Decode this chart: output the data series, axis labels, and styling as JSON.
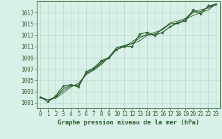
{
  "title": "Graphe pression niveau de la mer (hPa)",
  "bg_color": "#d8f0e8",
  "grid_color": "#b8d8c8",
  "line_color": "#2a5e2a",
  "marker_color": "#2a5e2a",
  "xlim": [
    -0.5,
    23.5
  ],
  "ylim": [
    1000.0,
    1019.0
  ],
  "xticks": [
    0,
    1,
    2,
    3,
    4,
    5,
    6,
    7,
    8,
    9,
    10,
    11,
    12,
    13,
    14,
    15,
    16,
    17,
    18,
    19,
    20,
    21,
    22,
    23
  ],
  "yticks": [
    1001,
    1003,
    1005,
    1007,
    1009,
    1011,
    1013,
    1015,
    1017
  ],
  "series": [
    [
      1002.0,
      1001.2,
      1002.2,
      1004.0,
      1004.2,
      1003.8,
      1006.5,
      1007.2,
      1008.5,
      1009.0,
      1010.5,
      1011.0,
      1011.0,
      1013.2,
      1013.5,
      1013.0,
      1013.5,
      1014.5,
      1015.2,
      1015.5,
      1017.5,
      1016.8,
      1018.2,
      1018.5
    ],
    [
      1002.0,
      1001.5,
      1001.8,
      1002.8,
      1003.8,
      1004.5,
      1006.0,
      1006.8,
      1007.8,
      1009.2,
      1010.8,
      1011.2,
      1011.5,
      1012.0,
      1013.0,
      1013.5,
      1014.0,
      1015.0,
      1015.0,
      1015.8,
      1016.5,
      1017.0,
      1017.5,
      1018.5
    ],
    [
      1002.0,
      1001.5,
      1002.0,
      1003.2,
      1004.0,
      1004.2,
      1006.2,
      1007.0,
      1008.2,
      1009.0,
      1010.8,
      1011.0,
      1011.8,
      1012.8,
      1013.0,
      1013.2,
      1014.0,
      1015.2,
      1015.5,
      1016.0,
      1017.2,
      1017.5,
      1017.8,
      1018.5
    ],
    [
      1002.0,
      1001.5,
      1002.0,
      1003.5,
      1004.2,
      1004.0,
      1006.2,
      1007.0,
      1008.0,
      1009.0,
      1010.5,
      1011.0,
      1011.5,
      1012.5,
      1013.2,
      1013.0,
      1014.2,
      1015.0,
      1015.2,
      1015.8,
      1017.0,
      1017.2,
      1018.0,
      1018.5
    ]
  ]
}
